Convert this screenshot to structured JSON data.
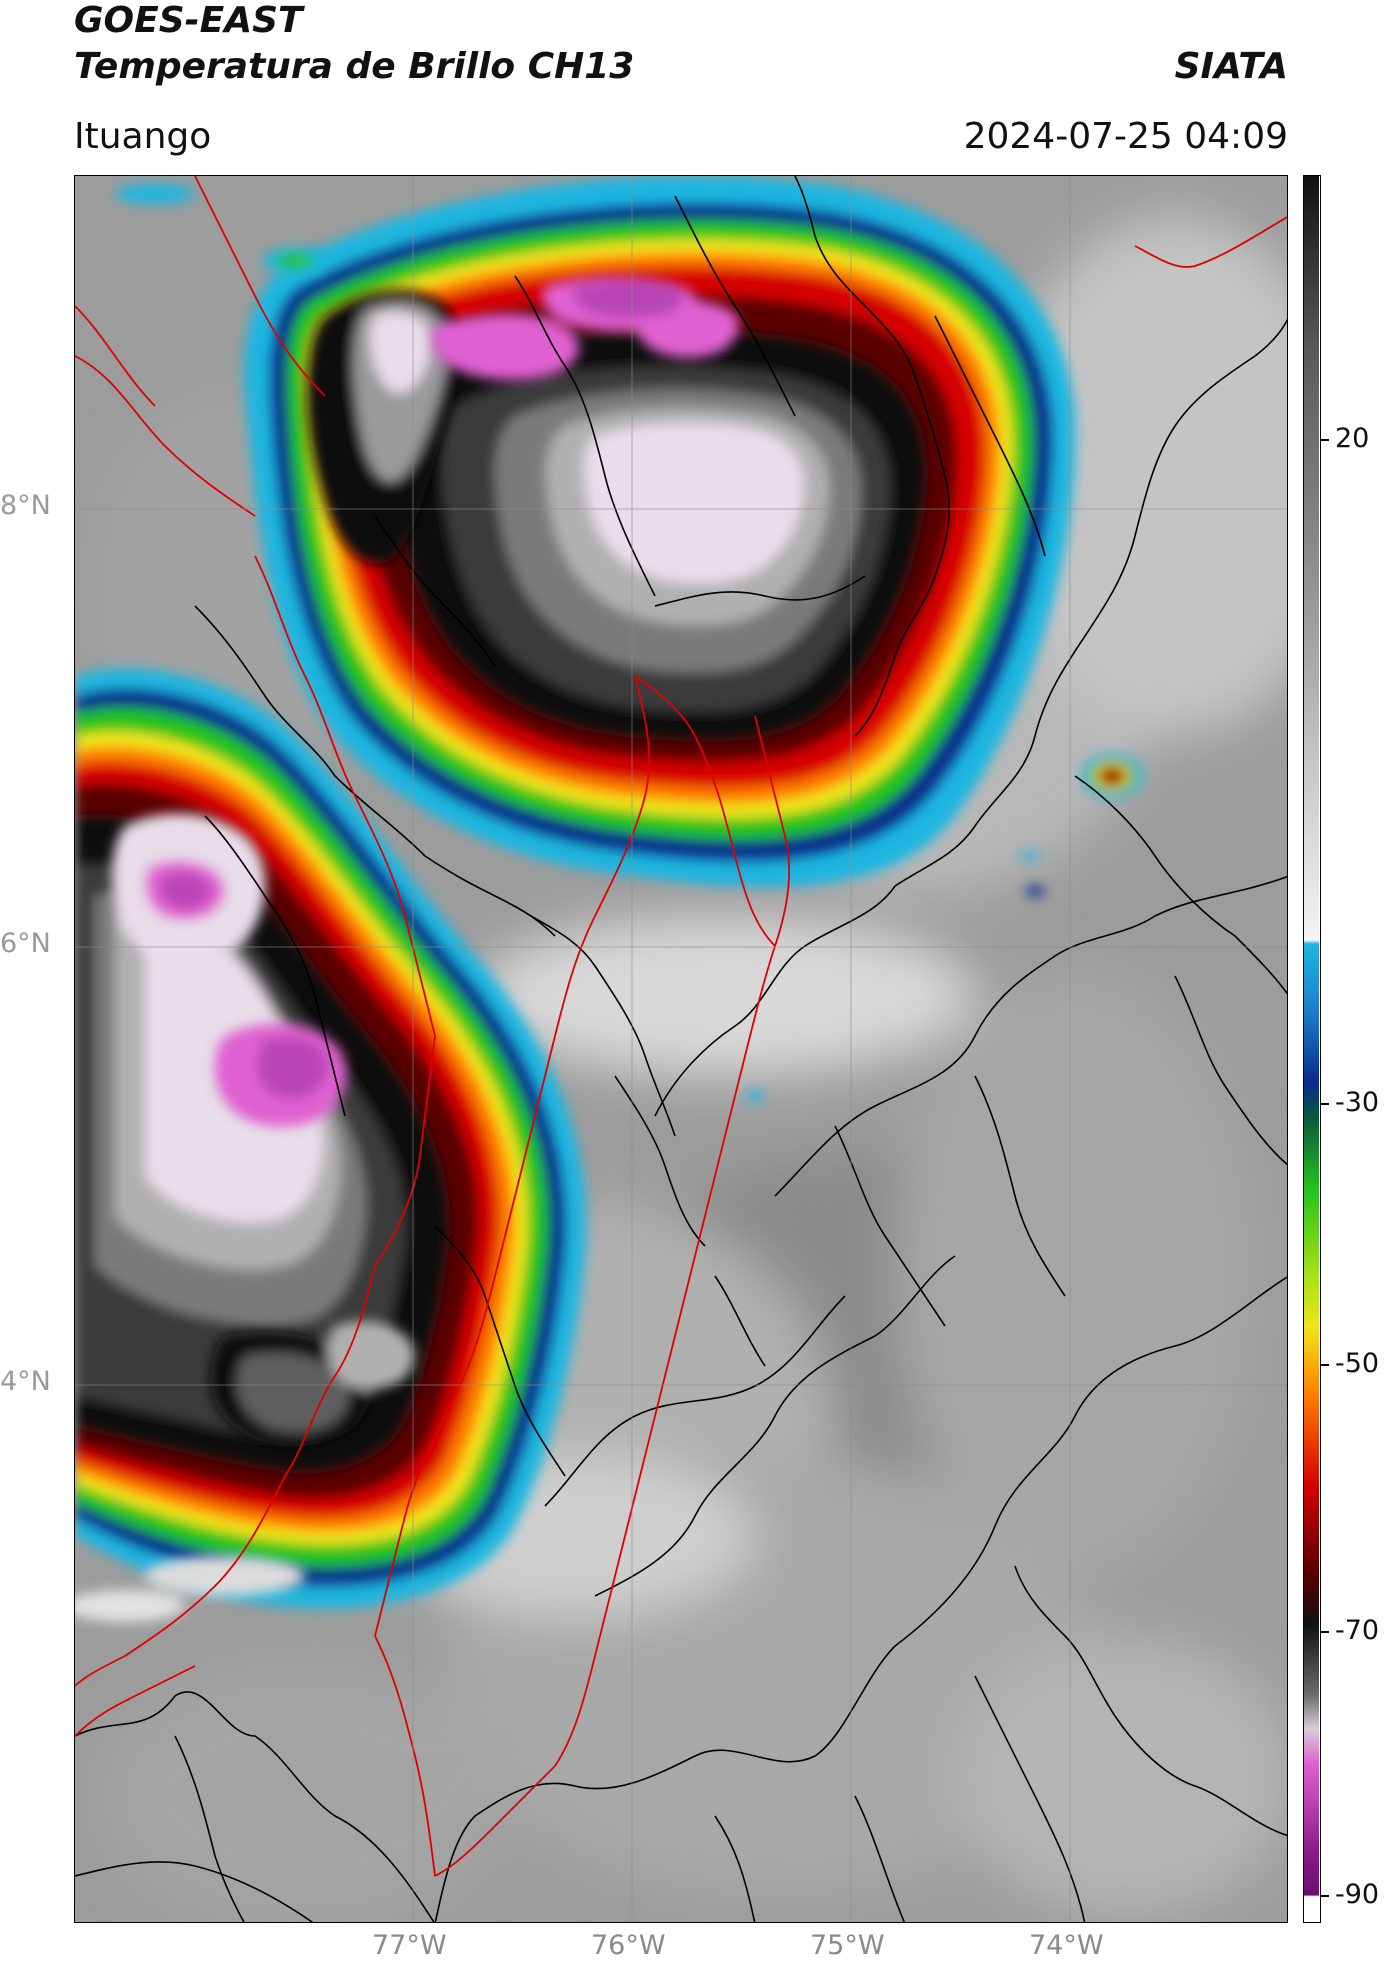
{
  "header": {
    "satellite": "GOES-EAST",
    "product": "Temperatura de Brillo CH13",
    "brand": "SIATA",
    "region": "Ituango",
    "datetime": "2024-07-25 04:09"
  },
  "map": {
    "lat_labels": [
      "8°N",
      "6°N",
      "4°N"
    ],
    "lon_labels": [
      "77°W",
      "76°W",
      "75°W",
      "74°W"
    ],
    "lat_range": [
      1.4,
      9.5
    ],
    "lon_range": [
      -78.55,
      -73.0
    ]
  },
  "colorbar": {
    "tick_labels": [
      "20",
      "-30",
      "-50",
      "-70",
      "-90"
    ],
    "range": [
      -90,
      40
    ],
    "colors": {
      "warm_gray": "#9a9a9a",
      "cloud_white": "#eeeeee",
      "cyan": "#1fb6e0",
      "blue": "#0a2a8c",
      "green": "#23c21f",
      "yellow": "#f0e41a",
      "orange": "#ff7a00",
      "red": "#d60000",
      "dark_red": "#5a0000",
      "black": "#111111",
      "magenta": "#e060d0",
      "purple": "#8a1a8a"
    }
  },
  "overlays": {
    "department_border": "#000000",
    "municipality_border": "#e00000",
    "gridline": "#8c8c8c"
  }
}
